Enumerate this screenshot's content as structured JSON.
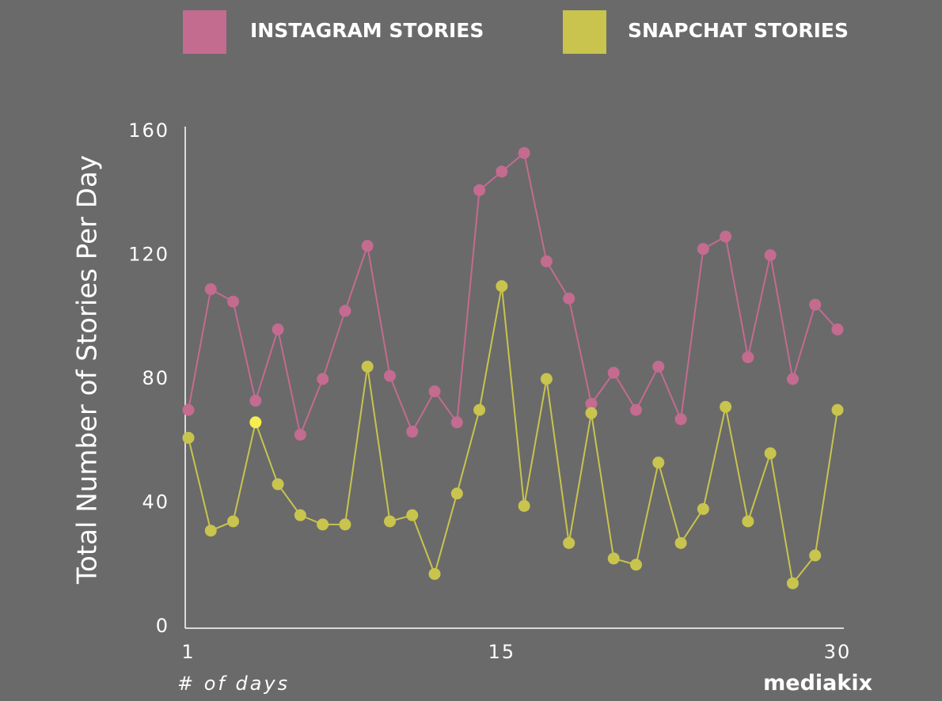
{
  "chart_data": {
    "type": "line",
    "x": [
      1,
      2,
      3,
      4,
      5,
      6,
      7,
      8,
      9,
      10,
      11,
      12,
      13,
      14,
      15,
      16,
      17,
      18,
      19,
      20,
      21,
      22,
      23,
      24,
      25,
      26,
      27,
      28,
      29,
      30
    ],
    "series": [
      {
        "name": "INSTAGRAM STORIES",
        "color": "#c46b90",
        "values": [
          70,
          109,
          105,
          73,
          96,
          62,
          80,
          102,
          123,
          81,
          63,
          76,
          66,
          141,
          147,
          153,
          118,
          106,
          72,
          82,
          70,
          84,
          67,
          122,
          126,
          87,
          120,
          80,
          104,
          96
        ]
      },
      {
        "name": "SNAPCHAT STORIES",
        "color": "#c8c44e",
        "values": [
          61,
          31,
          34,
          66,
          46,
          36,
          33,
          33,
          84,
          34,
          36,
          17,
          43,
          70,
          110,
          39,
          80,
          27,
          69,
          22,
          20,
          53,
          27,
          38,
          71,
          34,
          56,
          14,
          23,
          70
        ]
      }
    ],
    "highlight": {
      "series": 1,
      "index": 3,
      "color": "#f5ee4e"
    },
    "xticks": [
      "1",
      "15",
      "30"
    ],
    "xtick_values": [
      1,
      15,
      30
    ],
    "yticks": [
      "0",
      "40",
      "80",
      "120",
      "160"
    ],
    "ytick_values": [
      0,
      40,
      80,
      120,
      160
    ],
    "xlim": [
      1,
      30
    ],
    "ylim": [
      0,
      160
    ],
    "ylabel": "Total Number of Stories Per Day",
    "xlabel": "# of days",
    "legend_position": "top",
    "grid": false
  },
  "brand": "mediakix"
}
